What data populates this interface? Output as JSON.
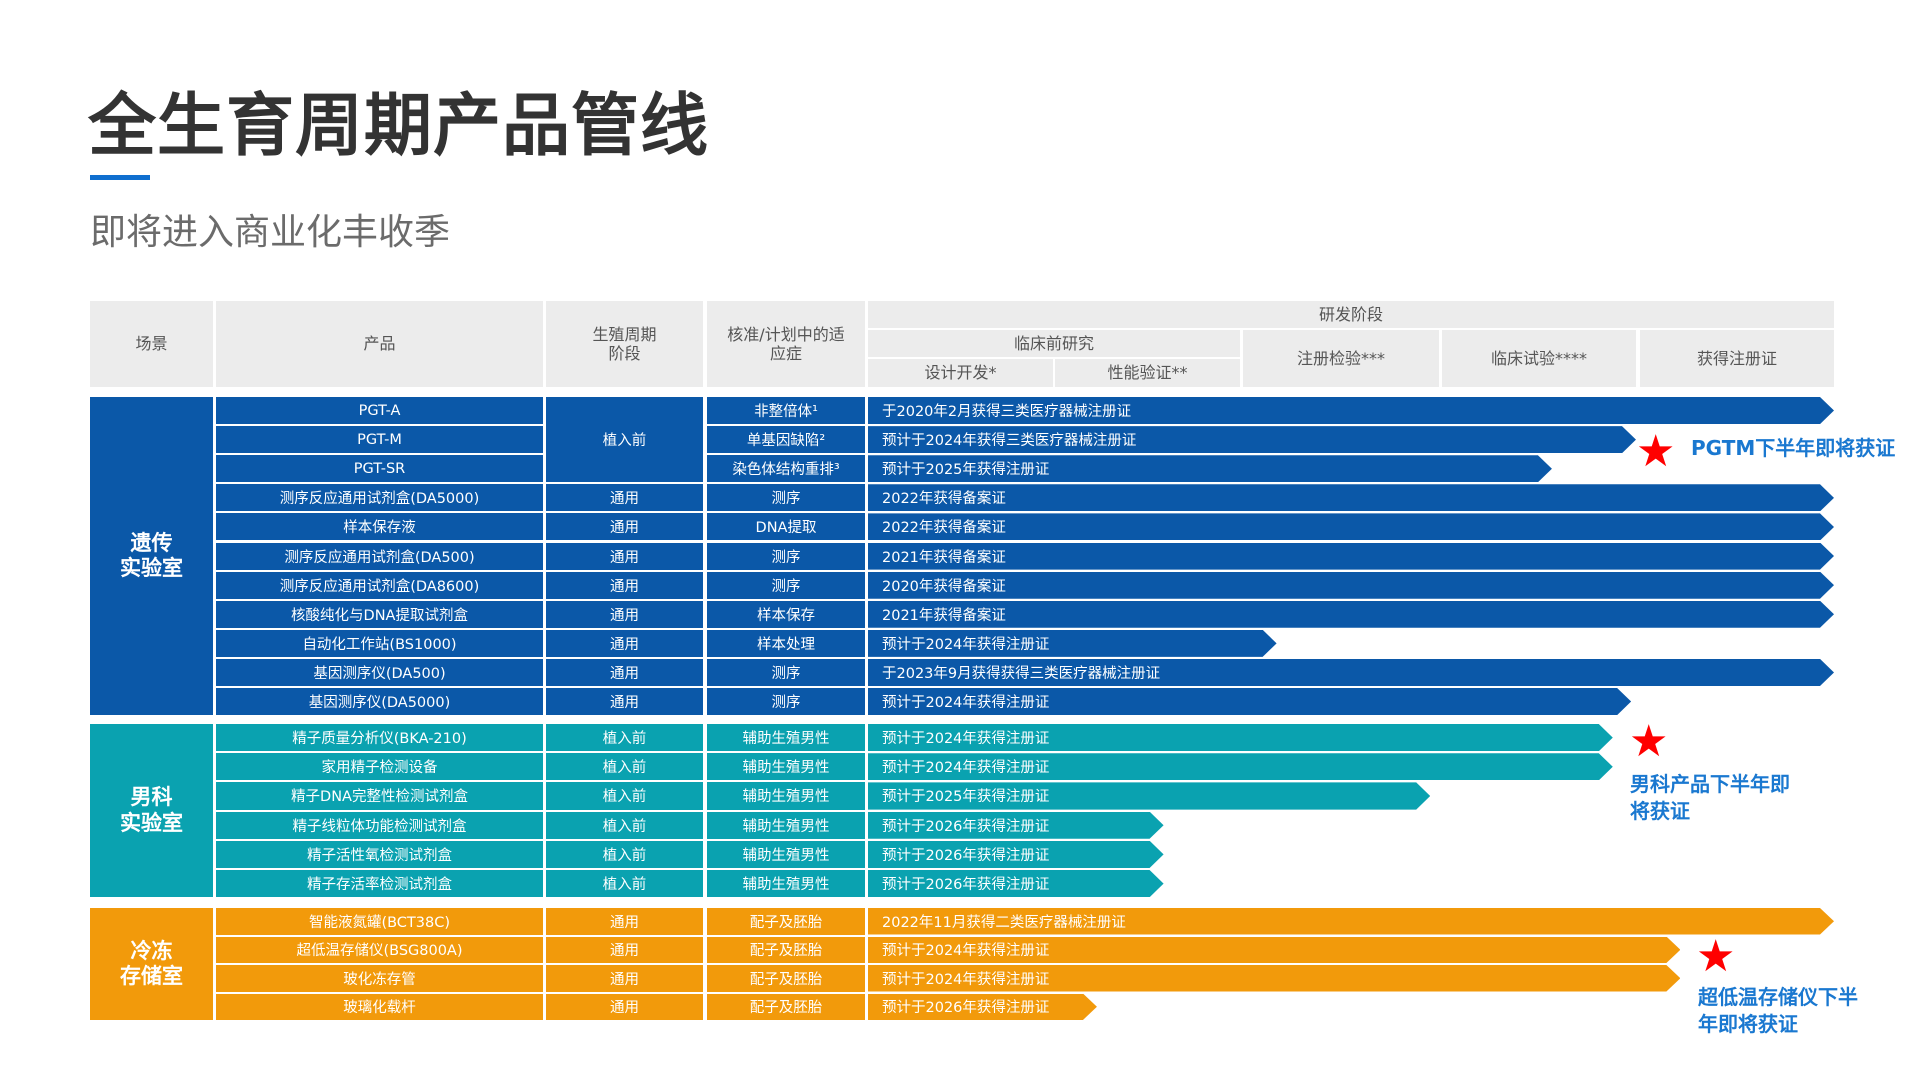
{
  "title": "全生育周期产品管线",
  "subtitle": "即将进入商业化丰收季",
  "header": {
    "scene": "场景",
    "product": "产品",
    "stage": "生殖周期\n阶段",
    "indication": "核准/计划中的适\n应症",
    "rd": "研发阶段",
    "preclinical": "临床前研究",
    "design": "设计开发*",
    "performance": "性能验证**",
    "registration_test": "注册检验***",
    "clinical_trial": "临床试验****",
    "certified": "获得注册证"
  },
  "colors": {
    "genetic": "#0b58a8",
    "andrology": "#0aa2b0",
    "cryo": "#f29a0b",
    "star": "#ff0000",
    "note": "#1a78d0"
  },
  "groups": [
    {
      "name": "遗传\n实验室",
      "color_key": "genetic",
      "rows": [
        {
          "product": "PGT-A",
          "stage": "植入前",
          "stage_span": 3,
          "indication": "非整倍体¹",
          "status": "于2020年2月获得三类医疗器械注册证",
          "progress": 1.0
        },
        {
          "product": "PGT-M",
          "stage": "",
          "stage_span": 0,
          "indication": "单基因缺陷²",
          "status": "预计于2024年获得三类医疗器械注册证",
          "progress": 0.795
        },
        {
          "product": "PGT-SR",
          "stage": "",
          "stage_span": 0,
          "indication": "染色体结构重排³",
          "status": "预计于2025年获得注册证",
          "progress": 0.708
        },
        {
          "product": "测序反应通用试剂盒(DA5000)",
          "stage": "通用",
          "stage_span": 1,
          "indication": "测序",
          "status": "2022年获得备案证",
          "progress": 1.0
        },
        {
          "product": "样本保存液",
          "stage": "通用",
          "stage_span": 1,
          "indication": "DNA提取",
          "status": "2022年获得备案证",
          "progress": 1.0
        },
        {
          "product": "测序反应通用试剂盒(DA500)",
          "stage": "通用",
          "stage_span": 1,
          "indication": "测序",
          "status": "2021年获得备案证",
          "progress": 1.0
        },
        {
          "product": "测序反应通用试剂盒(DA8600)",
          "stage": "通用",
          "stage_span": 1,
          "indication": "测序",
          "status": "2020年获得备案证",
          "progress": 1.0
        },
        {
          "product": "核酸纯化与DNA提取试剂盒",
          "stage": "通用",
          "stage_span": 1,
          "indication": "样本保存",
          "status": "2021年获得备案证",
          "progress": 1.0
        },
        {
          "product": "自动化工作站(BS1000)",
          "stage": "通用",
          "stage_span": 1,
          "indication": "样本处理",
          "status": "预计于2024年获得注册证",
          "progress": 0.423
        },
        {
          "product": "基因测序仪(DA500)",
          "stage": "通用",
          "stage_span": 1,
          "indication": "测序",
          "status": "于2023年9月获得获得三类医疗器械注册证",
          "progress": 1.0
        },
        {
          "product": "基因测序仪(DA5000)",
          "stage": "通用",
          "stage_span": 1,
          "indication": "测序",
          "status": "预计于2024年获得注册证",
          "progress": 0.79
        }
      ]
    },
    {
      "name": "男科\n实验室",
      "color_key": "andrology",
      "rows": [
        {
          "product": "精子质量分析仪(BKA-210)",
          "stage": "植入前",
          "stage_span": 1,
          "indication": "辅助生殖男性",
          "status": "预计于2024年获得注册证",
          "progress": 0.771
        },
        {
          "product": "家用精子检测设备",
          "stage": "植入前",
          "stage_span": 1,
          "indication": "辅助生殖男性",
          "status": "预计于2024年获得注册证",
          "progress": 0.771
        },
        {
          "product": "精子DNA完整性检测试剂盒",
          "stage": "植入前",
          "stage_span": 1,
          "indication": "辅助生殖男性",
          "status": "预计于2025年获得注册证",
          "progress": 0.582
        },
        {
          "product": "精子线粒体功能检测试剂盒",
          "stage": "植入前",
          "stage_span": 1,
          "indication": "辅助生殖男性",
          "status": "预计于2026年获得注册证",
          "progress": 0.306
        },
        {
          "product": "精子活性氧检测试剂盒",
          "stage": "植入前",
          "stage_span": 1,
          "indication": "辅助生殖男性",
          "status": "预计于2026年获得注册证",
          "progress": 0.306
        },
        {
          "product": "精子存活率检测试剂盒",
          "stage": "植入前",
          "stage_span": 1,
          "indication": "辅助生殖男性",
          "status": "预计于2026年获得注册证",
          "progress": 0.306
        }
      ]
    },
    {
      "name": "冷冻\n存储室",
      "color_key": "cryo",
      "rows": [
        {
          "product": "智能液氮罐(BCT38C)",
          "stage": "通用",
          "stage_span": 1,
          "indication": "配子及胚胎",
          "status": "2022年11月获得二类医疗器械注册证",
          "progress": 1.0
        },
        {
          "product": "超低温存储仪(BSG800A)",
          "stage": "通用",
          "stage_span": 1,
          "indication": "配子及胚胎",
          "status": "预计于2024年获得注册证",
          "progress": 0.841
        },
        {
          "product": "玻化冻存管",
          "stage": "通用",
          "stage_span": 1,
          "indication": "配子及胚胎",
          "status": "预计于2024年获得注册证",
          "progress": 0.841
        },
        {
          "product": "玻璃化载杆",
          "stage": "通用",
          "stage_span": 1,
          "indication": "配子及胚胎",
          "status": "预计于2026年获得注册证",
          "progress": 0.237
        }
      ]
    }
  ],
  "notes": [
    {
      "text": "PGTM下半年即将获证"
    },
    {
      "text": "男科产品下半年即\n将获证"
    },
    {
      "text": "超低温存储仪下半\n年即将获证"
    }
  ]
}
